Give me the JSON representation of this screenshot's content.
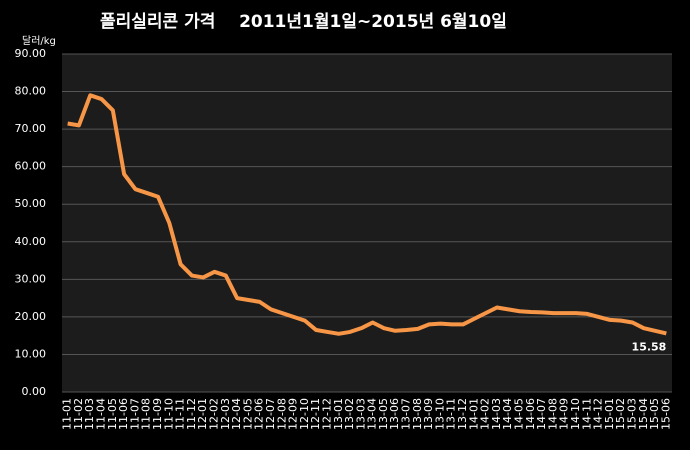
{
  "chart_data": {
    "type": "line",
    "title": "폴리실리콘 가격    2011년1월1일~2015년 6월10일",
    "y_label": "달러/kg",
    "categories": [
      "11-01",
      "11-02",
      "11-03",
      "11-04",
      "11-05",
      "11-06",
      "11-07",
      "11-08",
      "11-09",
      "11-10",
      "11-11",
      "11-12",
      "12-01",
      "12-02",
      "12-03",
      "12-04",
      "12-05",
      "12-06",
      "12-07",
      "12-08",
      "12-09",
      "12-10",
      "12-11",
      "12-12",
      "13-01",
      "13-02",
      "13-03",
      "13-04",
      "13-05",
      "13-06",
      "13-07",
      "13-08",
      "13-09",
      "13-10",
      "13-11",
      "13-12",
      "14-01",
      "14-02",
      "14-03",
      "14-04",
      "14-05",
      "14-06",
      "14-07",
      "14-08",
      "14-09",
      "14-10",
      "14-11",
      "14-12",
      "15-01",
      "15-02",
      "15-03",
      "15-04",
      "15-05",
      "15-06"
    ],
    "series": [
      {
        "name": "폴리실리콘",
        "color": "#f79646",
        "values": [
          71.5,
          71,
          79,
          78,
          75,
          58,
          54,
          53,
          52,
          45,
          34,
          31,
          30.5,
          32,
          31,
          25,
          24.5,
          24,
          22,
          21,
          20,
          19,
          16.5,
          16,
          15.5,
          16,
          17,
          18.5,
          17,
          16.3,
          16.5,
          16.8,
          18,
          18.2,
          18,
          18,
          19.5,
          21,
          22.5,
          22,
          21.5,
          21.3,
          21.2,
          21,
          21,
          21,
          20.8,
          20,
          19.2,
          19,
          18.5,
          17,
          16.3,
          15.58
        ]
      }
    ],
    "label_last": true,
    "ylim": [
      0,
      90
    ],
    "yticks": [
      {
        "value": 0,
        "label": "0.00"
      },
      {
        "value": 10,
        "label": "10.00"
      },
      {
        "value": 20,
        "label": "20.00"
      },
      {
        "value": 30,
        "label": "30.00"
      },
      {
        "value": 40,
        "label": "40.00"
      },
      {
        "value": 50,
        "label": "50.00"
      },
      {
        "value": 60,
        "label": "60.00"
      },
      {
        "value": 70,
        "label": "70.00"
      },
      {
        "value": 80,
        "label": "80.00"
      },
      {
        "value": 90,
        "label": "90.00"
      }
    ],
    "grid": true
  }
}
